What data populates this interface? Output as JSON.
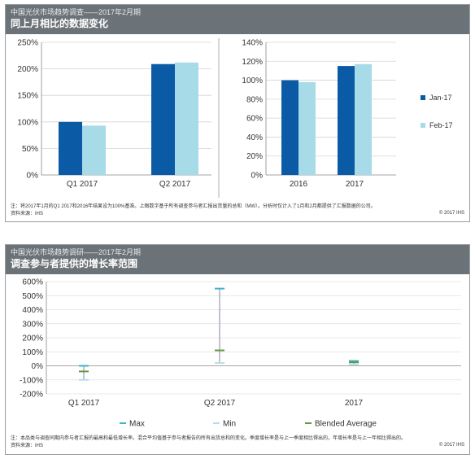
{
  "panel1": {
    "header_sub": "中国光伏市场趋势调查——2017年2月期",
    "header_title": "同上月相比的数据变化",
    "note": "注：将2017年1月的Q1 2017和2016年结果设为100%基准。上图数字基于所有调查参与者汇报出货量的总和（MW）。分析时仅计入了1月和2月都提供了汇报数据的公司。",
    "source": "资料来源：IHS",
    "copyright": "© 2017 IHS"
  },
  "panel2": {
    "header_sub": "中国光伏市场趋势调研——2017年2月期",
    "header_title": "调查参与者提供的增长率范围",
    "note": "注：本品类与调查同期内参与者汇报的最高和最低增长率。混合平均值基于参与者报告的所有出货总和的变化。季度增长率是与上一季度相比得出的，年增长率是与上一年相比得出的。",
    "source": "资料来源：IHS",
    "copyright": "© 2017 IHS"
  },
  "colors": {
    "jan": "#0a5aa6",
    "feb": "#a7dbe8",
    "max": "#3fb3cf",
    "min": "#b7dee9",
    "blend": "#5f9b3f",
    "range": "#9f95b5"
  },
  "chart_data": [
    {
      "type": "bar",
      "categories": [
        "Q1 2017",
        "Q2 2017"
      ],
      "series": [
        {
          "name": "Jan-17",
          "values": [
            100,
            209
          ]
        },
        {
          "name": "Feb-17",
          "values": [
            93,
            212
          ]
        }
      ],
      "ylim": [
        0,
        250
      ],
      "yticks": [
        "0%",
        "50%",
        "100%",
        "150%",
        "200%",
        "250%"
      ],
      "grid": true
    },
    {
      "type": "bar",
      "categories": [
        "2016",
        "2017"
      ],
      "series": [
        {
          "name": "Jan-17",
          "values": [
            100,
            115
          ]
        },
        {
          "name": "Feb-17",
          "values": [
            98,
            117
          ]
        }
      ],
      "ylim": [
        0,
        140
      ],
      "yticks": [
        "0%",
        "20%",
        "40%",
        "60%",
        "80%",
        "100%",
        "120%",
        "140%"
      ],
      "grid": true,
      "legend": "right"
    },
    {
      "type": "scatter",
      "categories": [
        "Q1 2017",
        "Q2 2017",
        "2017"
      ],
      "series": [
        {
          "name": "Max",
          "values": [
            0,
            550,
            35
          ]
        },
        {
          "name": "Min",
          "values": [
            -100,
            20,
            10
          ]
        },
        {
          "name": "Blended Average",
          "values": [
            -40,
            110,
            25
          ]
        }
      ],
      "ylim": [
        -200,
        600
      ],
      "yticks": [
        "-200%",
        "-100%",
        "0%",
        "100%",
        "200%",
        "300%",
        "400%",
        "500%",
        "600%"
      ],
      "grid": true,
      "legend": "bottom"
    }
  ]
}
